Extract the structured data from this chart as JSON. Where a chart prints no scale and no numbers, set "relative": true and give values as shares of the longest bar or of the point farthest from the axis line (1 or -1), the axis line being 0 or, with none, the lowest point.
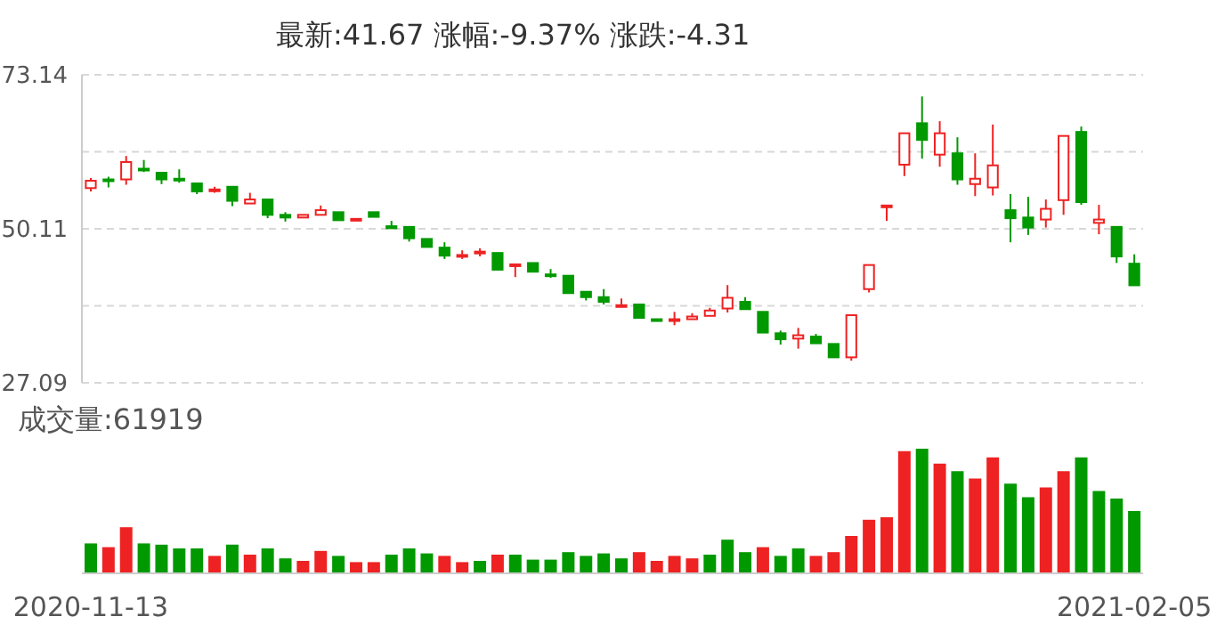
{
  "chart_data": [
    {
      "type": "candlestick",
      "title": "最新:41.67  涨幅:-9.37%  涨跌:-4.31",
      "categories": [
        null,
        null,
        null,
        null,
        null,
        null,
        null,
        null,
        null,
        null,
        null,
        null,
        null,
        null,
        null,
        null,
        null,
        null,
        null,
        null,
        null,
        null,
        null,
        null,
        null,
        null,
        null,
        null,
        null,
        null,
        null,
        null,
        null,
        null,
        null,
        null,
        null,
        null,
        null,
        null,
        null,
        null,
        null,
        null,
        null,
        null,
        null,
        null,
        null,
        null,
        null,
        null,
        null,
        null,
        null,
        null,
        null,
        null,
        null,
        null
      ],
      "ohlc": [
        [
          56.2,
          57.7,
          55.7,
          57.3
        ],
        [
          57.5,
          57.9,
          56.3,
          57.4
        ],
        [
          57.5,
          61.0,
          56.7,
          60.1
        ],
        [
          59.1,
          60.4,
          58.6,
          59.0
        ],
        [
          58.5,
          58.5,
          56.8,
          57.5
        ],
        [
          57.6,
          59.0,
          57.0,
          57.5
        ],
        [
          56.9,
          56.9,
          55.3,
          55.7
        ],
        [
          55.9,
          56.4,
          55.5,
          56.0
        ],
        [
          56.4,
          56.4,
          53.5,
          54.3
        ],
        [
          53.9,
          55.5,
          53.9,
          54.5
        ],
        [
          54.5,
          54.5,
          51.7,
          52.2
        ],
        [
          52.2,
          52.6,
          51.2,
          51.8
        ],
        [
          51.8,
          52.4,
          51.7,
          52.2
        ],
        [
          52.2,
          53.6,
          52.0,
          52.9
        ],
        [
          52.6,
          52.6,
          51.4,
          51.4
        ],
        [
          51.5,
          51.9,
          51.2,
          51.6
        ],
        [
          52.6,
          52.7,
          51.7,
          51.9
        ],
        [
          50.5,
          51.3,
          50.1,
          50.2
        ],
        [
          50.4,
          50.4,
          48.2,
          48.7
        ],
        [
          48.6,
          48.6,
          47.4,
          47.4
        ],
        [
          47.3,
          48.1,
          45.6,
          46.1
        ],
        [
          46.1,
          46.9,
          45.6,
          46.2
        ],
        [
          46.6,
          47.2,
          46.0,
          46.7
        ],
        [
          46.5,
          46.5,
          43.7,
          44.0
        ],
        [
          44.7,
          44.8,
          42.9,
          44.8
        ],
        [
          45.0,
          45.1,
          43.7,
          43.7
        ],
        [
          43.3,
          44.1,
          42.8,
          43.2
        ],
        [
          43.1,
          43.1,
          40.5,
          40.5
        ],
        [
          40.7,
          40.7,
          39.4,
          39.9
        ],
        [
          39.9,
          41.1,
          38.8,
          39.2
        ],
        [
          38.6,
          39.7,
          38.6,
          38.7
        ],
        [
          38.8,
          38.8,
          36.5,
          36.8
        ],
        [
          36.6,
          36.9,
          36.4,
          36.5
        ],
        [
          36.5,
          37.7,
          35.7,
          36.6
        ],
        [
          36.6,
          37.5,
          36.6,
          37.0
        ],
        [
          37.1,
          38.3,
          37.1,
          37.9
        ],
        [
          38.2,
          41.7,
          37.6,
          39.8
        ],
        [
          39.2,
          39.9,
          38.1,
          38.1
        ],
        [
          37.7,
          38.0,
          34.6,
          34.6
        ],
        [
          34.5,
          34.9,
          32.8,
          33.6
        ],
        [
          33.7,
          35.3,
          32.2,
          34.2
        ],
        [
          34.0,
          34.4,
          32.7,
          33.0
        ],
        [
          32.9,
          32.9,
          30.9,
          30.9
        ],
        [
          30.9,
          37.2,
          30.4,
          37.2
        ],
        [
          41.1,
          44.7,
          40.6,
          44.7
        ],
        [
          53.5,
          53.6,
          51.3,
          53.6
        ],
        [
          59.7,
          64.4,
          58.0,
          64.4
        ],
        [
          65.9,
          69.9,
          60.6,
          63.4
        ],
        [
          61.2,
          66.2,
          59.4,
          64.4
        ],
        [
          61.4,
          63.8,
          56.7,
          57.5
        ],
        [
          56.8,
          61.4,
          55.0,
          57.6
        ],
        [
          56.3,
          65.7,
          55.1,
          59.6
        ],
        [
          52.9,
          55.3,
          48.1,
          51.7
        ],
        [
          51.8,
          54.9,
          49.2,
          50.3
        ],
        [
          51.5,
          54.5,
          50.3,
          53.1
        ],
        [
          54.4,
          64.0,
          52.2,
          64.0
        ],
        [
          64.6,
          65.4,
          53.7,
          54.1
        ],
        [
          51.0,
          53.7,
          49.3,
          51.5
        ],
        [
          50.4,
          50.4,
          45.0,
          45.98
        ],
        [
          44.9,
          46.3,
          41.6,
          41.67
        ]
      ],
      "ylim": [
        27.09,
        73.14
      ],
      "yticks": [
        27.09,
        {
          "value": 38.6,
          "label": null
        },
        50.11,
        {
          "value": 61.63,
          "label": null
        },
        73.14
      ],
      "grid": "y",
      "tick_labels": "y"
    },
    {
      "type": "bar",
      "title": "成交量:61919",
      "relative": true,
      "categories": [
        "2020-11-13",
        null,
        null,
        null,
        null,
        null,
        null,
        null,
        null,
        null,
        null,
        null,
        null,
        null,
        null,
        null,
        null,
        null,
        null,
        null,
        null,
        null,
        null,
        null,
        null,
        null,
        null,
        null,
        null,
        null,
        null,
        null,
        null,
        null,
        null,
        null,
        null,
        null,
        null,
        null,
        null,
        null,
        null,
        null,
        null,
        null,
        null,
        null,
        null,
        null,
        null,
        null,
        null,
        null,
        null,
        null,
        null,
        null,
        null,
        "2021-02-05"
      ],
      "values": [
        0.24,
        0.21,
        0.37,
        0.24,
        0.23,
        0.2,
        0.2,
        0.14,
        0.23,
        0.15,
        0.2,
        0.12,
        0.1,
        0.18,
        0.14,
        0.09,
        0.09,
        0.15,
        0.2,
        0.16,
        0.14,
        0.09,
        0.1,
        0.15,
        0.15,
        0.11,
        0.11,
        0.17,
        0.14,
        0.16,
        0.12,
        0.17,
        0.1,
        0.14,
        0.12,
        0.15,
        0.27,
        0.17,
        0.21,
        0.14,
        0.2,
        0.14,
        0.17,
        0.3,
        0.43,
        0.45,
        0.98,
        1,
        0.88,
        0.82,
        0.76,
        0.93,
        0.72,
        0.61,
        0.69,
        0.82,
        0.93,
        0.66,
        0.6,
        0.5
      ],
      "colors": [
        "#009900",
        "#ee2222",
        "#ee2222",
        "#009900",
        "#009900",
        "#009900",
        "#009900",
        "#ee2222",
        "#009900",
        "#ee2222",
        "#009900",
        "#009900",
        "#ee2222",
        "#ee2222",
        "#009900",
        "#ee2222",
        "#ee2222",
        "#009900",
        "#009900",
        "#009900",
        "#ee2222",
        "#ee2222",
        "#009900",
        "#ee2222",
        "#009900",
        "#009900",
        "#009900",
        "#009900",
        "#009900",
        "#009900",
        "#009900",
        "#ee2222",
        "#ee2222",
        "#ee2222",
        "#ee2222",
        "#009900",
        "#009900",
        "#009900",
        "#ee2222",
        "#009900",
        "#009900",
        "#ee2222",
        "#ee2222",
        "#ee2222",
        "#ee2222",
        "#ee2222",
        "#ee2222",
        "#009900",
        "#ee2222",
        "#009900",
        "#ee2222",
        "#ee2222",
        "#009900",
        "#009900",
        "#ee2222",
        "#ee2222",
        "#009900",
        "#009900",
        "#009900",
        "#009900"
      ]
    }
  ]
}
